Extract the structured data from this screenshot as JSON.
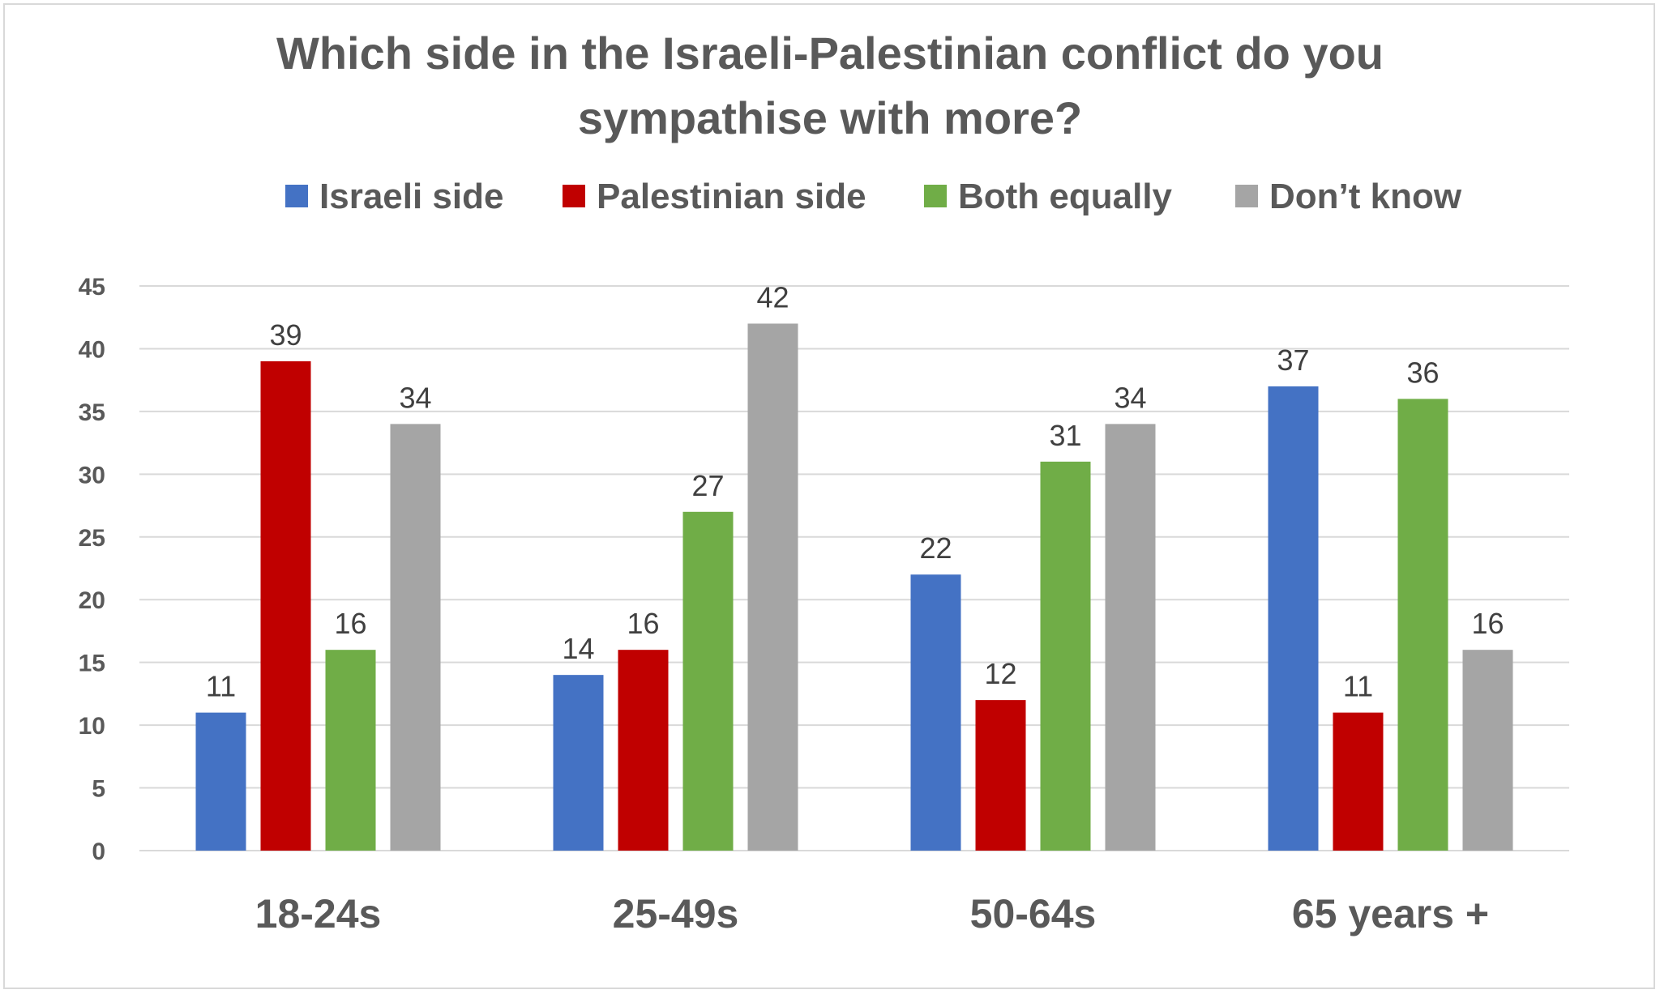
{
  "chart_data": {
    "type": "bar",
    "title_lines": [
      "Which side in the Israeli-Palestinian conflict do you",
      "sympathise with more?"
    ],
    "categories": [
      "18-24s",
      "25-49s",
      "50-64s",
      "65 years +"
    ],
    "series": [
      {
        "name": "Israeli side",
        "color": "#4472C4",
        "values": [
          11,
          14,
          22,
          37
        ]
      },
      {
        "name": "Palestinian side",
        "color": "#C00000",
        "values": [
          39,
          16,
          12,
          11
        ]
      },
      {
        "name": "Both equally",
        "color": "#70AD47",
        "values": [
          16,
          27,
          31,
          36
        ]
      },
      {
        "name": "Don’t know",
        "color": "#A5A5A5",
        "values": [
          34,
          42,
          34,
          16
        ]
      }
    ],
    "ylim": [
      0,
      45
    ],
    "yticks": [
      "0",
      "5",
      "10",
      "15",
      "20",
      "25",
      "30",
      "35",
      "40",
      "45"
    ],
    "grid": true,
    "legend_position": "top"
  }
}
